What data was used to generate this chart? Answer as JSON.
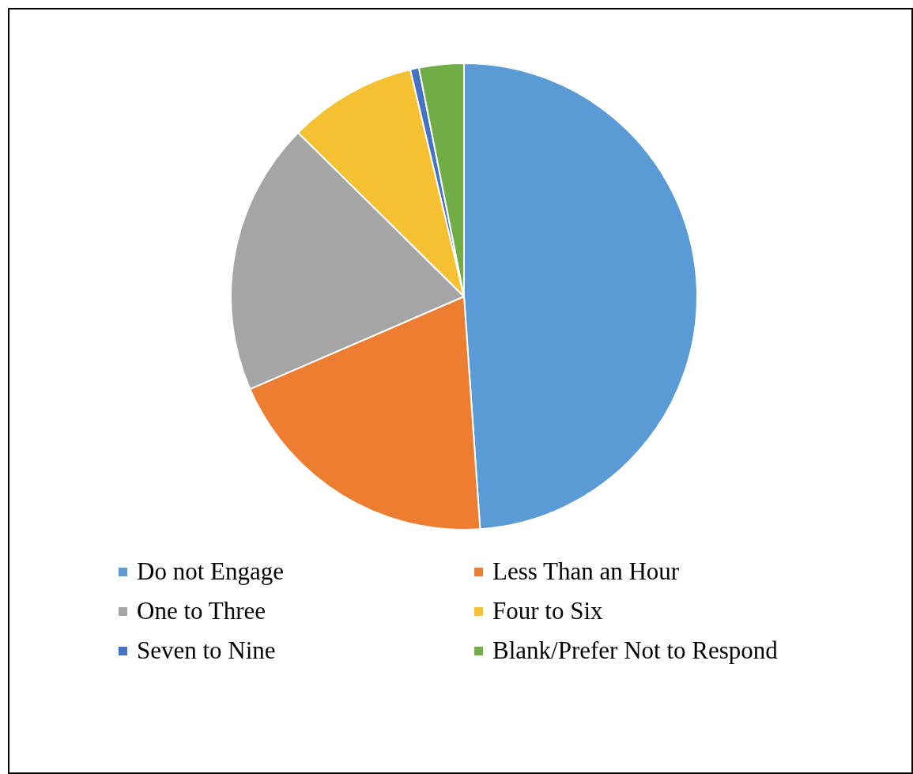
{
  "chart_data": {
    "type": "pie",
    "categories": [
      "Do not Engage",
      "Less Than an Hour",
      "One to Three",
      "Four to Six",
      "Seven to Nine",
      "Blank/Prefer Not to Respond"
    ],
    "values": [
      48.9,
      19.6,
      18.9,
      8.9,
      0.6,
      3.1
    ],
    "colors": [
      "#5b9bd5",
      "#ed7d31",
      "#a5a5a5",
      "#f6c033",
      "#4472c4",
      "#70ad47"
    ],
    "legend": "bottom"
  }
}
